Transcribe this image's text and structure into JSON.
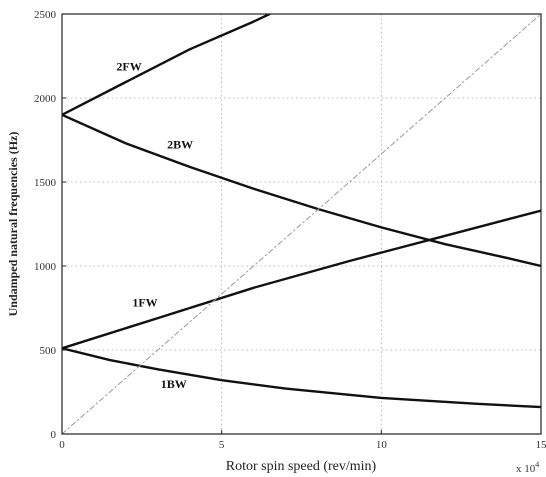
{
  "chart_data": {
    "type": "line",
    "title": "",
    "xlabel": "Rotor spin speed (rev/min)",
    "ylabel": "Undamped natural frequencies (Hz)",
    "x_exponent_label": "x 10",
    "x_exponent_power": "4",
    "xlim": [
      0,
      15
    ],
    "ylim": [
      0,
      2500
    ],
    "x_ticks": [
      0,
      5,
      10,
      15
    ],
    "x_tick_labels": [
      "0",
      "5",
      "10",
      "15"
    ],
    "y_ticks": [
      0,
      500,
      1000,
      1500,
      2000,
      2500
    ],
    "y_tick_labels": [
      "0",
      "500",
      "1000",
      "1500",
      "2000",
      "2500"
    ],
    "grid": true,
    "colors": {
      "series": "#111111",
      "reference": "#999999",
      "grid": "#aaaaaa"
    },
    "series": [
      {
        "name": "2FW",
        "x": [
          0,
          2,
          4,
          6,
          6.5
        ],
        "y": [
          1900,
          2095,
          2290,
          2455,
          2500
        ]
      },
      {
        "name": "2BW",
        "x": [
          0,
          2,
          4,
          6,
          8,
          10,
          12,
          14,
          15
        ],
        "y": [
          1900,
          1730,
          1590,
          1460,
          1340,
          1230,
          1130,
          1045,
          1000
        ]
      },
      {
        "name": "1FW",
        "x": [
          0,
          3,
          6,
          9,
          12,
          15
        ],
        "y": [
          510,
          690,
          870,
          1030,
          1180,
          1330
        ]
      },
      {
        "name": "1BW",
        "x": [
          0,
          1.5,
          3,
          5,
          7,
          10,
          13,
          15
        ],
        "y": [
          510,
          440,
          385,
          320,
          270,
          215,
          180,
          160
        ]
      },
      {
        "name": "",
        "style": "dashed",
        "x": [
          0,
          15
        ],
        "y": [
          0,
          2500
        ]
      }
    ],
    "annotations": [
      {
        "text": "2FW",
        "x": 2.1,
        "y": 2165
      },
      {
        "text": "2BW",
        "x": 3.7,
        "y": 1700
      },
      {
        "text": "1FW",
        "x": 2.6,
        "y": 760
      },
      {
        "text": "1BW",
        "x": 3.5,
        "y": 275
      }
    ]
  }
}
